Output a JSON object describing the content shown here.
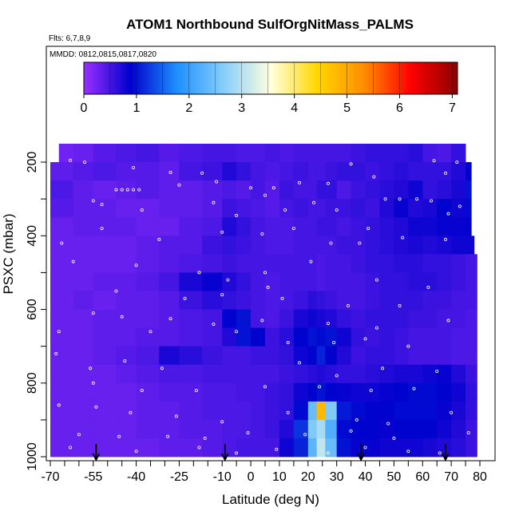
{
  "chart_data": {
    "type": "heatmap",
    "title": "ATOM1 Northbound SulfOrgNitMass_PALMS",
    "subtitle_flights": "Flts: 6,7,8,9",
    "subtitle_dates": "MMDD: 0812,0815,0817,0820",
    "xlabel": "Latitude (deg N)",
    "ylabel": "PSXC (mbar)",
    "xlim": [
      -70,
      80
    ],
    "ylim_inverted": [
      1000,
      150
    ],
    "x_tick_labels": [
      "-70",
      "-55",
      "-40",
      "-25",
      "-10",
      "0",
      "10",
      "20",
      "30",
      "40",
      "50",
      "60",
      "70",
      "80"
    ],
    "x_tick_values": [
      -70,
      -55,
      -40,
      -25,
      -10,
      0,
      10,
      20,
      30,
      40,
      50,
      60,
      70,
      80
    ],
    "y_tick_labels": [
      "200",
      "400",
      "600",
      "800",
      "1000"
    ],
    "y_tick_values": [
      200,
      400,
      600,
      800,
      1000
    ],
    "colorbar": {
      "min": 0,
      "max": 7.1,
      "tick_labels": [
        "0",
        "1",
        "2",
        "3",
        "4",
        "5",
        "6",
        "7"
      ],
      "tick_values": [
        0,
        1,
        2,
        3,
        4,
        5,
        6,
        7
      ],
      "colors": [
        "#9b30ff",
        "#0000cd",
        "#1e90ff",
        "#87cefa",
        "#ffffe0",
        "#ffd700",
        "#ff8c00",
        "#ff0000",
        "#8b0000"
      ]
    },
    "grid": {
      "lat_bin_edges": [
        -70,
        -62,
        -55,
        -47,
        -40,
        -32,
        -25,
        -17,
        -10,
        -5,
        0,
        5,
        10,
        15,
        20,
        23,
        26,
        30,
        35,
        40,
        45,
        50,
        55,
        60,
        65,
        70,
        75,
        80
      ],
      "press_bin_edges": [
        150,
        200,
        250,
        300,
        350,
        400,
        450,
        500,
        550,
        600,
        650,
        700,
        750,
        800,
        850,
        900,
        950,
        1000
      ],
      "values": [
        [
          0.25,
          0.3,
          0.4,
          0.45,
          0.5,
          0.4,
          0.45,
          0.5,
          0.5,
          0.45,
          0.45,
          0.5,
          0.45,
          0.5,
          0.5,
          0.5,
          0.5,
          0.5,
          0.55,
          0.6,
          0.6,
          0.6,
          0.65,
          0.5,
          0.45,
          0.6,
          0.55
        ],
        [
          0.35,
          0.4,
          0.45,
          0.4,
          0.4,
          0.35,
          0.5,
          0.55,
          0.7,
          0.6,
          0.5,
          0.45,
          0.5,
          0.55,
          0.5,
          0.5,
          0.55,
          0.6,
          0.6,
          0.55,
          0.6,
          0.65,
          0.6,
          0.6,
          0.6,
          0.7,
          0.9
        ],
        [
          0.45,
          0.35,
          0.3,
          0.35,
          0.4,
          0.35,
          0.35,
          0.4,
          0.45,
          0.4,
          0.5,
          0.4,
          0.55,
          0.5,
          0.5,
          0.6,
          0.6,
          0.45,
          0.55,
          0.6,
          0.65,
          0.7,
          0.8,
          0.6,
          0.65,
          0.75,
          1.0
        ],
        [
          0.4,
          0.35,
          0.35,
          0.3,
          0.3,
          0.35,
          0.35,
          0.4,
          0.55,
          0.5,
          0.45,
          0.4,
          0.5,
          0.55,
          0.5,
          0.5,
          0.55,
          0.55,
          0.6,
          0.55,
          0.7,
          0.85,
          0.7,
          0.75,
          0.9,
          0.8,
          0.95
        ],
        [
          0.3,
          0.35,
          0.35,
          0.35,
          0.3,
          0.3,
          0.4,
          0.45,
          0.7,
          0.6,
          0.5,
          0.45,
          0.45,
          0.5,
          0.5,
          0.55,
          0.55,
          0.5,
          0.55,
          0.6,
          0.65,
          0.7,
          0.8,
          0.8,
          0.85,
          0.85,
          0.9
        ],
        [
          0.3,
          0.3,
          0.3,
          0.3,
          0.35,
          0.4,
          0.4,
          0.55,
          0.6,
          0.55,
          0.5,
          0.45,
          0.45,
          0.5,
          0.5,
          0.5,
          0.5,
          0.55,
          0.55,
          0.6,
          0.65,
          0.7,
          0.75,
          0.7,
          0.75,
          0.8,
          0.8
        ],
        [
          0.3,
          0.3,
          0.3,
          0.3,
          0.35,
          0.4,
          0.45,
          0.5,
          0.55,
          0.5,
          0.5,
          0.5,
          0.5,
          0.5,
          0.5,
          0.45,
          0.5,
          0.5,
          0.55,
          0.6,
          0.6,
          0.65,
          0.65,
          0.6,
          0.6,
          0.55,
          0.5
        ],
        [
          0.3,
          0.3,
          0.35,
          0.35,
          0.4,
          0.5,
          0.75,
          0.85,
          0.7,
          0.6,
          0.5,
          0.45,
          0.5,
          0.5,
          0.5,
          0.45,
          0.5,
          0.5,
          0.5,
          0.55,
          0.6,
          0.6,
          0.65,
          0.65,
          0.6,
          0.55,
          0.5
        ],
        [
          0.3,
          0.35,
          0.3,
          0.35,
          0.35,
          0.4,
          0.55,
          0.65,
          0.6,
          0.55,
          0.5,
          0.45,
          0.5,
          0.55,
          0.65,
          0.6,
          0.55,
          0.5,
          0.5,
          0.55,
          0.6,
          0.6,
          0.6,
          0.55,
          0.55,
          0.5,
          0.5
        ],
        [
          0.3,
          0.3,
          0.35,
          0.35,
          0.35,
          0.4,
          0.45,
          0.5,
          0.9,
          1.0,
          0.5,
          0.45,
          0.55,
          0.75,
          0.8,
          0.75,
          0.7,
          0.6,
          0.55,
          0.6,
          0.6,
          0.6,
          0.55,
          0.55,
          0.5,
          0.5,
          0.45
        ],
        [
          0.3,
          0.3,
          0.35,
          0.35,
          0.4,
          0.4,
          0.45,
          0.5,
          0.7,
          1.0,
          0.9,
          0.55,
          0.65,
          0.9,
          1.0,
          0.95,
          1.0,
          0.8,
          0.6,
          0.55,
          0.6,
          0.55,
          0.5,
          0.5,
          0.5,
          0.45,
          0.45
        ],
        [
          0.3,
          0.3,
          0.35,
          0.4,
          0.45,
          0.75,
          0.65,
          0.55,
          0.5,
          0.5,
          0.55,
          0.55,
          0.6,
          0.8,
          0.9,
          1.1,
          0.9,
          0.7,
          0.55,
          0.6,
          0.6,
          0.55,
          0.5,
          0.5,
          0.5,
          0.45,
          0.45
        ],
        [
          0.3,
          0.3,
          0.3,
          0.35,
          0.4,
          0.45,
          0.45,
          0.5,
          0.5,
          0.5,
          0.5,
          0.5,
          0.55,
          0.6,
          0.65,
          0.7,
          0.65,
          0.6,
          0.6,
          0.65,
          0.7,
          0.75,
          0.75,
          0.8,
          0.85,
          0.7,
          0.55
        ],
        [
          0.3,
          0.3,
          0.3,
          0.3,
          0.35,
          0.4,
          0.4,
          0.45,
          0.45,
          0.5,
          0.5,
          0.55,
          0.6,
          0.8,
          0.9,
          1.0,
          0.9,
          0.85,
          0.8,
          0.8,
          0.85,
          0.9,
          0.95,
          0.95,
          0.9,
          0.8,
          0.6
        ],
        [
          0.3,
          0.3,
          0.3,
          0.3,
          0.35,
          0.35,
          0.4,
          0.45,
          0.45,
          0.45,
          0.5,
          0.55,
          0.6,
          0.95,
          2.4,
          4.8,
          2.6,
          1.05,
          0.95,
          0.9,
          0.9,
          0.95,
          0.95,
          0.95,
          0.85,
          0.75,
          0.6
        ],
        [
          0.3,
          0.3,
          0.3,
          0.3,
          0.35,
          0.35,
          0.4,
          0.4,
          0.45,
          0.45,
          0.5,
          0.55,
          0.7,
          1.2,
          2.6,
          2.9,
          2.2,
          0.95,
          0.9,
          0.9,
          0.85,
          0.9,
          0.9,
          0.9,
          0.8,
          0.7,
          0.55
        ],
        [
          0.3,
          0.3,
          0.3,
          0.3,
          0.3,
          0.35,
          0.35,
          0.4,
          0.45,
          0.5,
          0.5,
          0.5,
          0.8,
          1.1,
          2.3,
          3.1,
          2.4,
          1.0,
          0.85,
          0.85,
          0.8,
          0.8,
          0.8,
          0.75,
          0.7,
          0.65,
          0.55
        ]
      ]
    },
    "row_extents": [
      [
        -67,
        75
      ],
      [
        -70,
        77
      ],
      [
        -70,
        77
      ],
      [
        -70,
        77
      ],
      [
        -70,
        77
      ],
      [
        -70,
        78
      ],
      [
        -70,
        79
      ],
      [
        -70,
        79
      ],
      [
        -70,
        79
      ],
      [
        -70,
        79
      ],
      [
        -70,
        79
      ],
      [
        -70,
        79
      ],
      [
        -70,
        79
      ],
      [
        -70,
        79
      ],
      [
        -70,
        79
      ],
      [
        -70,
        79
      ],
      [
        -70,
        79
      ]
    ],
    "flight_markers_lat": [
      -54,
      -9,
      38.5,
      68
    ],
    "sample_points": [
      {
        "lat": -63,
        "p": 195
      },
      {
        "lat": -58,
        "p": 200
      },
      {
        "lat": -41,
        "p": 215
      },
      {
        "lat": -28,
        "p": 228
      },
      {
        "lat": -17,
        "p": 230
      },
      {
        "lat": -12,
        "p": 253
      },
      {
        "lat": 0,
        "p": 270
      },
      {
        "lat": 8,
        "p": 270
      },
      {
        "lat": 17,
        "p": 256
      },
      {
        "lat": 27,
        "p": 258
      },
      {
        "lat": 35,
        "p": 205
      },
      {
        "lat": 43,
        "p": 240
      },
      {
        "lat": 64,
        "p": 196
      },
      {
        "lat": 68,
        "p": 230
      },
      {
        "lat": 72,
        "p": 200
      },
      {
        "lat": -55,
        "p": 305
      },
      {
        "lat": -47,
        "p": 275
      },
      {
        "lat": -45,
        "p": 275
      },
      {
        "lat": -43,
        "p": 275
      },
      {
        "lat": -41,
        "p": 275
      },
      {
        "lat": -39,
        "p": 275
      },
      {
        "lat": -52,
        "p": 315
      },
      {
        "lat": -38,
        "p": 330
      },
      {
        "lat": -25,
        "p": 262
      },
      {
        "lat": -13,
        "p": 310
      },
      {
        "lat": -5,
        "p": 345
      },
      {
        "lat": 5,
        "p": 290
      },
      {
        "lat": 12,
        "p": 330
      },
      {
        "lat": 22,
        "p": 310
      },
      {
        "lat": 30,
        "p": 330
      },
      {
        "lat": 41,
        "p": 380
      },
      {
        "lat": 47,
        "p": 300
      },
      {
        "lat": 52,
        "p": 300
      },
      {
        "lat": 58,
        "p": 300
      },
      {
        "lat": 63,
        "p": 305
      },
      {
        "lat": 69,
        "p": 340
      },
      {
        "lat": 73,
        "p": 320
      },
      {
        "lat": -66,
        "p": 420
      },
      {
        "lat": -52,
        "p": 380
      },
      {
        "lat": -32,
        "p": 410
      },
      {
        "lat": -10,
        "p": 390
      },
      {
        "lat": 4,
        "p": 395
      },
      {
        "lat": 15,
        "p": 380
      },
      {
        "lat": 28,
        "p": 420
      },
      {
        "lat": 38,
        "p": 420
      },
      {
        "lat": 53,
        "p": 405
      },
      {
        "lat": 68,
        "p": 410
      },
      {
        "lat": -62,
        "p": 470
      },
      {
        "lat": -40,
        "p": 480
      },
      {
        "lat": -18,
        "p": 500
      },
      {
        "lat": -8,
        "p": 520
      },
      {
        "lat": 5,
        "p": 500
      },
      {
        "lat": 21,
        "p": 470
      },
      {
        "lat": 44,
        "p": 520
      },
      {
        "lat": 62,
        "p": 540
      },
      {
        "lat": -47,
        "p": 550
      },
      {
        "lat": -23,
        "p": 570
      },
      {
        "lat": -10,
        "p": 560
      },
      {
        "lat": 6,
        "p": 540
      },
      {
        "lat": 11,
        "p": 570
      },
      {
        "lat": 34,
        "p": 590
      },
      {
        "lat": 52,
        "p": 590
      },
      {
        "lat": -55,
        "p": 610
      },
      {
        "lat": -45,
        "p": 620
      },
      {
        "lat": -28,
        "p": 625
      },
      {
        "lat": -13,
        "p": 640
      },
      {
        "lat": 4,
        "p": 630
      },
      {
        "lat": 27,
        "p": 638
      },
      {
        "lat": 44,
        "p": 650
      },
      {
        "lat": 69,
        "p": 630
      },
      {
        "lat": -67,
        "p": 660
      },
      {
        "lat": -35,
        "p": 660
      },
      {
        "lat": -5,
        "p": 660
      },
      {
        "lat": 13,
        "p": 690
      },
      {
        "lat": 29,
        "p": 690
      },
      {
        "lat": 40,
        "p": 680
      },
      {
        "lat": 55,
        "p": 700
      },
      {
        "lat": -68,
        "p": 720
      },
      {
        "lat": -56,
        "p": 760
      },
      {
        "lat": -44,
        "p": 740
      },
      {
        "lat": -31,
        "p": 760
      },
      {
        "lat": 17,
        "p": 745
      },
      {
        "lat": 30,
        "p": 780
      },
      {
        "lat": 46,
        "p": 760
      },
      {
        "lat": 65,
        "p": 768
      },
      {
        "lat": -55,
        "p": 800
      },
      {
        "lat": -38,
        "p": 820
      },
      {
        "lat": -19,
        "p": 820
      },
      {
        "lat": 5,
        "p": 810
      },
      {
        "lat": 24,
        "p": 810
      },
      {
        "lat": 42,
        "p": 820
      },
      {
        "lat": 57,
        "p": 815
      },
      {
        "lat": -67,
        "p": 860
      },
      {
        "lat": -54,
        "p": 865
      },
      {
        "lat": -42,
        "p": 880
      },
      {
        "lat": -26,
        "p": 890
      },
      {
        "lat": -10,
        "p": 905
      },
      {
        "lat": 13,
        "p": 880
      },
      {
        "lat": 37,
        "p": 900
      },
      {
        "lat": 48,
        "p": 910
      },
      {
        "lat": 70,
        "p": 880
      },
      {
        "lat": -60,
        "p": 940
      },
      {
        "lat": -46,
        "p": 945
      },
      {
        "lat": -29,
        "p": 945
      },
      {
        "lat": -16,
        "p": 950
      },
      {
        "lat": -1,
        "p": 935
      },
      {
        "lat": 19,
        "p": 940
      },
      {
        "lat": 35,
        "p": 930
      },
      {
        "lat": 50,
        "p": 950
      },
      {
        "lat": 76,
        "p": 935
      },
      {
        "lat": -63,
        "p": 975
      },
      {
        "lat": -40,
        "p": 985
      },
      {
        "lat": -18,
        "p": 975
      },
      {
        "lat": -5,
        "p": 990
      },
      {
        "lat": 9,
        "p": 980
      },
      {
        "lat": 27,
        "p": 990
      },
      {
        "lat": 40,
        "p": 975
      },
      {
        "lat": 55,
        "p": 985
      },
      {
        "lat": 66,
        "p": 990
      }
    ]
  }
}
